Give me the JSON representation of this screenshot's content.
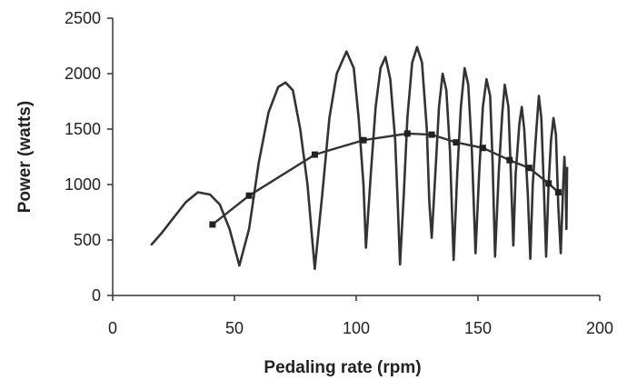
{
  "chart_data": {
    "type": "line",
    "title": "",
    "xlabel": "Pedaling rate (rpm)",
    "ylabel": "Power (watts)",
    "xlim": [
      0,
      200
    ],
    "ylim": [
      0,
      2500
    ],
    "x_ticks": [
      0,
      50,
      100,
      150,
      200
    ],
    "y_ticks": [
      0,
      500,
      1000,
      1500,
      2000,
      2500
    ],
    "grid": false,
    "legend": "none",
    "line_color": "#333333",
    "series": [
      {
        "style": "oscillating-line",
        "points": [
          [
            16,
            460
          ],
          [
            20,
            560
          ],
          [
            25,
            700
          ],
          [
            30,
            840
          ],
          [
            35,
            930
          ],
          [
            40,
            910
          ],
          [
            44,
            820
          ],
          [
            48,
            600
          ],
          [
            52,
            270
          ],
          [
            56,
            600
          ],
          [
            60,
            1200
          ],
          [
            64,
            1650
          ],
          [
            68,
            1880
          ],
          [
            71,
            1920
          ],
          [
            74,
            1850
          ],
          [
            77,
            1500
          ],
          [
            80,
            1000
          ],
          [
            83,
            240
          ],
          [
            86,
            900
          ],
          [
            89,
            1600
          ],
          [
            92,
            2000
          ],
          [
            96,
            2200
          ],
          [
            99,
            2050
          ],
          [
            101,
            1600
          ],
          [
            103,
            1000
          ],
          [
            104,
            430
          ],
          [
            106,
            1100
          ],
          [
            108,
            1700
          ],
          [
            110,
            2050
          ],
          [
            112,
            2150
          ],
          [
            114,
            1950
          ],
          [
            116,
            1400
          ],
          [
            117,
            850
          ],
          [
            118,
            280
          ],
          [
            119.5,
            900
          ],
          [
            121,
            1600
          ],
          [
            123,
            2100
          ],
          [
            125,
            2240
          ],
          [
            127,
            2100
          ],
          [
            129,
            1500
          ],
          [
            130,
            850
          ],
          [
            131,
            520
          ],
          [
            132.5,
            1100
          ],
          [
            134,
            1700
          ],
          [
            135.5,
            2000
          ],
          [
            137,
            1850
          ],
          [
            138.5,
            1300
          ],
          [
            140,
            320
          ],
          [
            141.5,
            1100
          ],
          [
            143,
            1700
          ],
          [
            144.5,
            2050
          ],
          [
            146,
            1900
          ],
          [
            147.5,
            1300
          ],
          [
            149,
            380
          ],
          [
            150.5,
            1100
          ],
          [
            152,
            1700
          ],
          [
            153.5,
            1950
          ],
          [
            155,
            1800
          ],
          [
            156,
            1200
          ],
          [
            157,
            350
          ],
          [
            158.5,
            1100
          ],
          [
            160,
            1650
          ],
          [
            161,
            1900
          ],
          [
            162.5,
            1700
          ],
          [
            163.5,
            1100
          ],
          [
            164.5,
            450
          ],
          [
            165.5,
            1100
          ],
          [
            167,
            1550
          ],
          [
            168,
            1700
          ],
          [
            169,
            1500
          ],
          [
            170.5,
            900
          ],
          [
            171.5,
            330
          ],
          [
            172.5,
            1000
          ],
          [
            174,
            1500
          ],
          [
            175,
            1800
          ],
          [
            176,
            1600
          ],
          [
            177,
            1000
          ],
          [
            178,
            350
          ],
          [
            179,
            1000
          ],
          [
            180,
            1400
          ],
          [
            181,
            1600
          ],
          [
            182,
            1450
          ],
          [
            183,
            800
          ],
          [
            184,
            380
          ],
          [
            185,
            1000
          ],
          [
            185.5,
            1250
          ],
          [
            186,
            1000
          ],
          [
            186.3,
            600
          ],
          [
            186.6,
            1150
          ]
        ]
      },
      {
        "style": "line-with-square-markers",
        "points": [
          [
            41,
            640
          ],
          [
            56,
            900
          ],
          [
            83,
            1270
          ],
          [
            103,
            1400
          ],
          [
            121,
            1460
          ],
          [
            131,
            1450
          ],
          [
            141,
            1380
          ],
          [
            152,
            1330
          ],
          [
            163,
            1220
          ],
          [
            171,
            1150
          ],
          [
            179,
            1010
          ],
          [
            183,
            930
          ]
        ]
      }
    ]
  }
}
